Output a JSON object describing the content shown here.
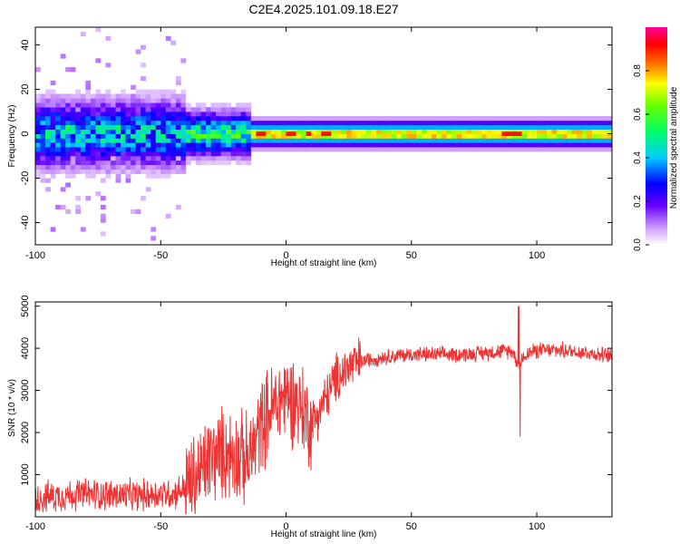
{
  "title": "C2E4.2025.101.09.18.E27",
  "chart_data": [
    {
      "type": "heatmap",
      "title": "C2E4.2025.101.09.18.E27",
      "xlabel": "Height of straight line (km)",
      "ylabel": "Frequency (Hz)",
      "xlim": [
        -100,
        130
      ],
      "ylim": [
        -50,
        48
      ],
      "xticks": [
        "-100",
        "-50",
        "0",
        "50",
        "100"
      ],
      "yticks": [
        "-40",
        "-20",
        "0",
        "20",
        "40"
      ],
      "colorbar": {
        "label": "Normalized spectral amplitude",
        "range": [
          0.0,
          1.0
        ],
        "ticks": [
          "0.0",
          "0.2",
          "0.4",
          "0.6",
          "0.8"
        ]
      },
      "description_values": {
        "band_center_hz": 0,
        "noisy_region_km": [
          -100,
          -40
        ],
        "strong_region_km": [
          -15,
          130
        ]
      }
    },
    {
      "type": "line",
      "xlabel": "Height of straight line (km)",
      "ylabel": "SNR (10 * v/v)",
      "xlim": [
        -100,
        130
      ],
      "ylim": [
        0,
        5100
      ],
      "xticks": [
        "-100",
        "-50",
        "0",
        "50",
        "100"
      ],
      "yticks": [
        "1000",
        "2000",
        "3000",
        "4000",
        "5000"
      ],
      "series": [
        {
          "name": "SNR",
          "color": "#ee3333",
          "x": [
            -100,
            -90,
            -80,
            -70,
            -60,
            -50,
            -45,
            -40,
            -35,
            -30,
            -25,
            -20,
            -15,
            -12,
            -10,
            -5,
            0,
            5,
            10,
            15,
            20,
            25,
            30,
            40,
            50,
            60,
            70,
            80,
            90,
            93,
            95,
            100,
            110,
            120,
            130
          ],
          "y": [
            450,
            500,
            550,
            520,
            500,
            550,
            550,
            700,
            1000,
            1400,
            1500,
            1500,
            1300,
            1800,
            2200,
            2600,
            2900,
            2700,
            2200,
            2700,
            3300,
            3550,
            3700,
            3800,
            3850,
            3850,
            3850,
            3900,
            3950,
            3600,
            3850,
            3950,
            3950,
            3900,
            3800
          ]
        }
      ]
    }
  ]
}
